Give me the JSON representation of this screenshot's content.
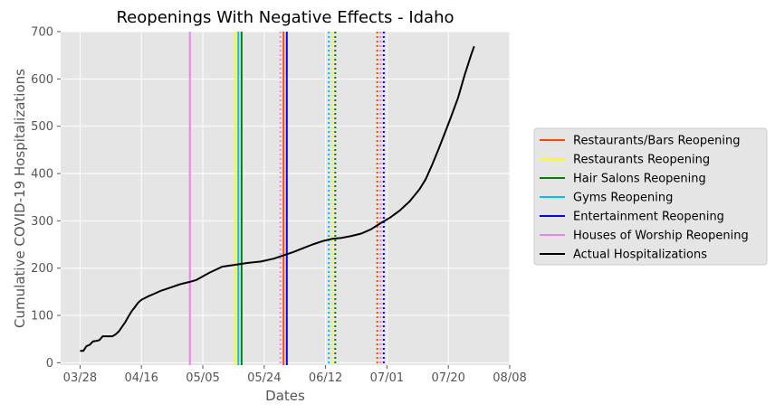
{
  "chart_data": {
    "type": "line",
    "title": "Reopenings With Negative Effects - Idaho",
    "xlabel": "Dates",
    "ylabel": "Cumulative COVID-19 Hospitalizations",
    "x_axis_start": "2020-03-28",
    "xlim": [
      "2020-03-22",
      "2020-08-08"
    ],
    "ylim": [
      -5,
      700
    ],
    "x_ticks": [
      {
        "date": "2020-03-28",
        "label": "03/28"
      },
      {
        "date": "2020-04-16",
        "label": "04/16"
      },
      {
        "date": "2020-05-05",
        "label": "05/05"
      },
      {
        "date": "2020-05-24",
        "label": "05/24"
      },
      {
        "date": "2020-06-12",
        "label": "06/12"
      },
      {
        "date": "2020-07-01",
        "label": "07/01"
      },
      {
        "date": "2020-07-20",
        "label": "07/20"
      },
      {
        "date": "2020-08-08",
        "label": "08/08"
      }
    ],
    "y_ticks": [
      0,
      100,
      200,
      300,
      400,
      500,
      600,
      700
    ],
    "grid": true,
    "legend_position": "right-outside",
    "background": "#e5e5e5",
    "series": [
      {
        "name": "Actual Hospitalizations",
        "color": "#000000",
        "points": [
          [
            "2020-03-28",
            25
          ],
          [
            "2020-03-29",
            25
          ],
          [
            "2020-03-30",
            35
          ],
          [
            "2020-03-31",
            38
          ],
          [
            "2020-04-01",
            45
          ],
          [
            "2020-04-02",
            46
          ],
          [
            "2020-04-03",
            48
          ],
          [
            "2020-04-04",
            56
          ],
          [
            "2020-04-05",
            56
          ],
          [
            "2020-04-06",
            56
          ],
          [
            "2020-04-07",
            56
          ],
          [
            "2020-04-08",
            60
          ],
          [
            "2020-04-09",
            66
          ],
          [
            "2020-04-10",
            76
          ],
          [
            "2020-04-11",
            86
          ],
          [
            "2020-04-12",
            98
          ],
          [
            "2020-04-13",
            109
          ],
          [
            "2020-04-14",
            118
          ],
          [
            "2020-04-15",
            127
          ],
          [
            "2020-04-16",
            133
          ],
          [
            "2020-04-18",
            140
          ],
          [
            "2020-04-20",
            146
          ],
          [
            "2020-04-22",
            152
          ],
          [
            "2020-04-25",
            159
          ],
          [
            "2020-04-28",
            166
          ],
          [
            "2020-05-01",
            171
          ],
          [
            "2020-05-03",
            175
          ],
          [
            "2020-05-07",
            190
          ],
          [
            "2020-05-11",
            203
          ],
          [
            "2020-05-15",
            207
          ],
          [
            "2020-05-19",
            211
          ],
          [
            "2020-05-23",
            214
          ],
          [
            "2020-05-27",
            220
          ],
          [
            "2020-05-30",
            227
          ],
          [
            "2020-06-02",
            234
          ],
          [
            "2020-06-05",
            242
          ],
          [
            "2020-06-08",
            250
          ],
          [
            "2020-06-11",
            257
          ],
          [
            "2020-06-14",
            262
          ],
          [
            "2020-06-17",
            264
          ],
          [
            "2020-06-20",
            268
          ],
          [
            "2020-06-23",
            273
          ],
          [
            "2020-06-26",
            282
          ],
          [
            "2020-06-29",
            295
          ],
          [
            "2020-07-02",
            307
          ],
          [
            "2020-07-05",
            322
          ],
          [
            "2020-07-08",
            341
          ],
          [
            "2020-07-11",
            366
          ],
          [
            "2020-07-13",
            388
          ],
          [
            "2020-07-15",
            419
          ],
          [
            "2020-07-17",
            452
          ],
          [
            "2020-07-19",
            487
          ],
          [
            "2020-07-21",
            523
          ],
          [
            "2020-07-23",
            560
          ],
          [
            "2020-07-25",
            607
          ],
          [
            "2020-07-27",
            650
          ],
          [
            "2020-07-28",
            669
          ]
        ]
      }
    ],
    "vertical_lines": [
      {
        "date": "2020-05-01",
        "color": "#ee82ee",
        "style": "solid"
      },
      {
        "date": "2020-05-15",
        "color": "#ffff00",
        "style": "solid"
      },
      {
        "date": "2020-05-16",
        "color": "#00bfff",
        "style": "solid"
      },
      {
        "date": "2020-05-17",
        "color": "#008000",
        "style": "solid"
      },
      {
        "date": "2020-05-29",
        "color": "#ee82ee",
        "style": "dotted"
      },
      {
        "date": "2020-05-30",
        "color": "#ff4500",
        "style": "solid"
      },
      {
        "date": "2020-05-31",
        "color": "#0000ff",
        "style": "solid"
      },
      {
        "date": "2020-06-13",
        "color": "#00bfff",
        "style": "dotted"
      },
      {
        "date": "2020-06-14",
        "color": "#ffff00",
        "style": "dotted"
      },
      {
        "date": "2020-06-15",
        "color": "#008000",
        "style": "dotted"
      },
      {
        "date": "2020-06-28",
        "color": "#ff4500",
        "style": "dotted"
      },
      {
        "date": "2020-06-29",
        "color": "#ee82ee",
        "style": "dotted"
      },
      {
        "date": "2020-06-30",
        "color": "#0000ff",
        "style": "dotted"
      }
    ],
    "legend": [
      {
        "label": "Restaurants/Bars Reopening",
        "color": "#ff4500"
      },
      {
        "label": "Restaurants Reopening",
        "color": "#ffff00"
      },
      {
        "label": "Hair Salons Reopening",
        "color": "#008000"
      },
      {
        "label": "Gyms Reopening",
        "color": "#00bfff"
      },
      {
        "label": "Entertainment Reopening",
        "color": "#0000ff"
      },
      {
        "label": "Houses of Worship Reopening",
        "color": "#ee82ee"
      },
      {
        "label": "Actual Hospitalizations",
        "color": "#000000"
      }
    ]
  }
}
